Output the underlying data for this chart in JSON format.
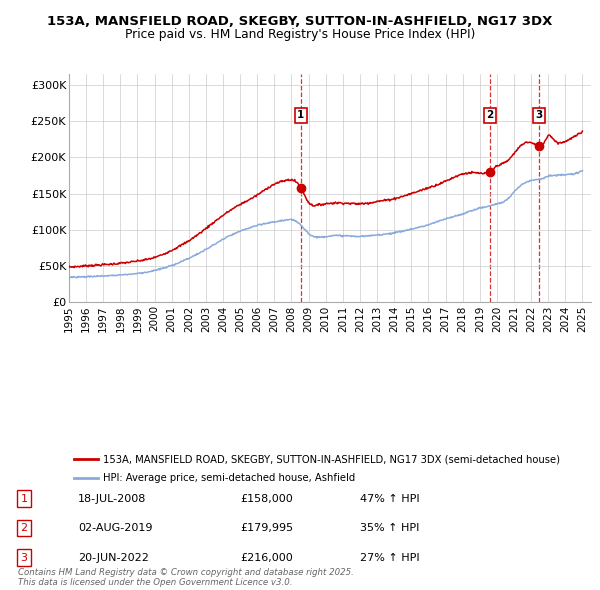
{
  "title_line1": "153A, MANSFIELD ROAD, SKEGBY, SUTTON-IN-ASHFIELD, NG17 3DX",
  "title_line2": "Price paid vs. HM Land Registry's House Price Index (HPI)",
  "xlim_start": 1995.0,
  "xlim_end": 2025.5,
  "ylim": [
    0,
    315000
  ],
  "yticks": [
    0,
    50000,
    100000,
    150000,
    200000,
    250000,
    300000
  ],
  "ytick_labels": [
    "£0",
    "£50K",
    "£100K",
    "£150K",
    "£200K",
    "£250K",
    "£300K"
  ],
  "xtick_years": [
    1995,
    1996,
    1997,
    1998,
    1999,
    2000,
    2001,
    2002,
    2003,
    2004,
    2005,
    2006,
    2007,
    2008,
    2009,
    2010,
    2011,
    2012,
    2013,
    2014,
    2015,
    2016,
    2017,
    2018,
    2019,
    2020,
    2021,
    2022,
    2023,
    2024,
    2025
  ],
  "price_paid_color": "#cc0000",
  "hpi_color": "#88aadd",
  "vline_color": "#cc0000",
  "sale_points": [
    {
      "year": 2008.55,
      "price": 158000,
      "label": "1"
    },
    {
      "year": 2019.6,
      "price": 179995,
      "label": "2"
    },
    {
      "year": 2022.47,
      "price": 216000,
      "label": "3"
    }
  ],
  "legend_entry1": "153A, MANSFIELD ROAD, SKEGBY, SUTTON-IN-ASHFIELD, NG17 3DX (semi-detached house)",
  "legend_entry2": "HPI: Average price, semi-detached house, Ashfield",
  "table_rows": [
    {
      "num": "1",
      "date": "18-JUL-2008",
      "price": "£158,000",
      "hpi": "47% ↑ HPI"
    },
    {
      "num": "2",
      "date": "02-AUG-2019",
      "price": "£179,995",
      "hpi": "35% ↑ HPI"
    },
    {
      "num": "3",
      "date": "20-JUN-2022",
      "price": "£216,000",
      "hpi": "27% ↑ HPI"
    }
  ],
  "footer": "Contains HM Land Registry data © Crown copyright and database right 2025.\nThis data is licensed under the Open Government Licence v3.0.",
  "bg_color": "#ffffff",
  "grid_color": "#cccccc"
}
